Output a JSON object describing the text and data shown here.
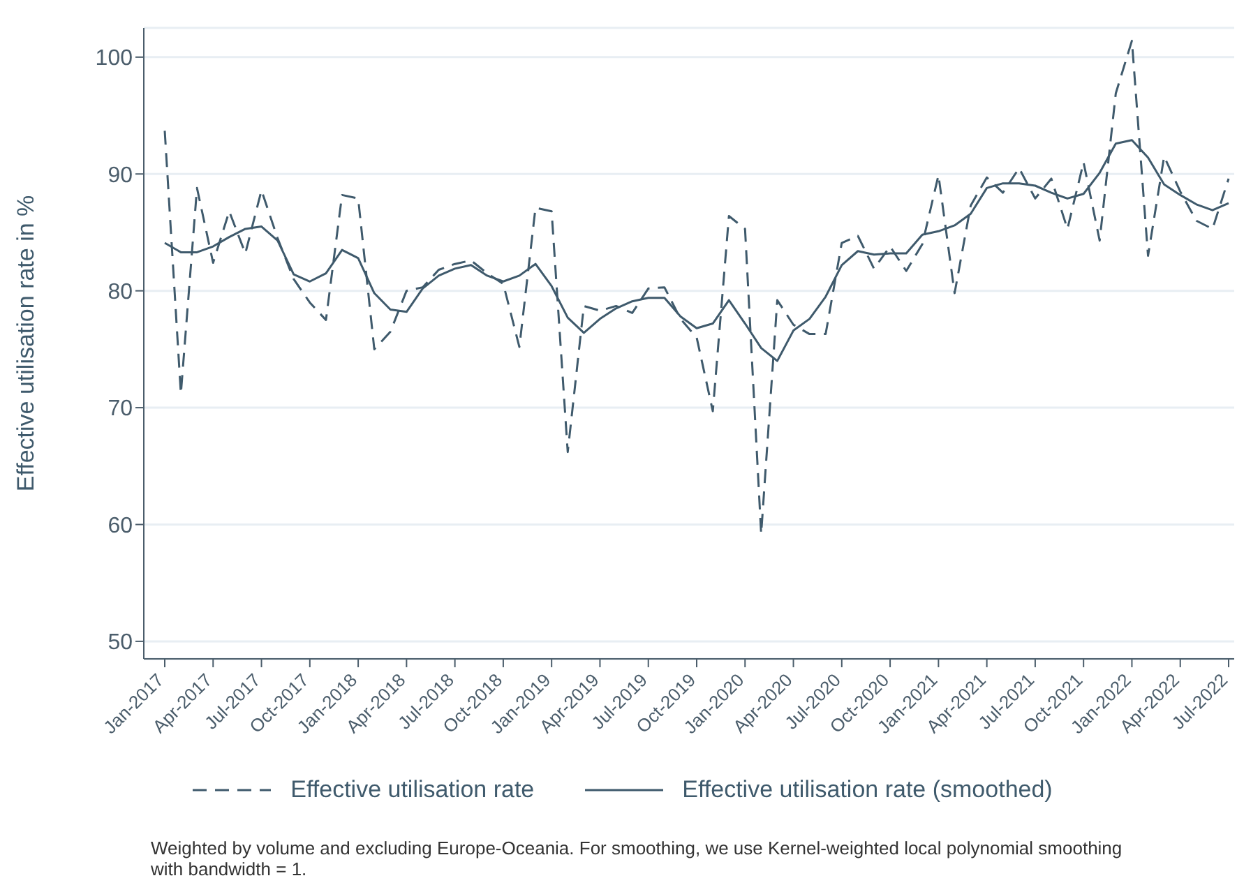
{
  "chart_data": {
    "type": "line",
    "ylabel": "Effective utilisation rate in %",
    "categories": [
      "Jan-2017",
      null,
      null,
      "Apr-2017",
      null,
      null,
      "Jul-2017",
      null,
      null,
      "Oct-2017",
      null,
      null,
      "Jan-2018",
      null,
      null,
      "Apr-2018",
      null,
      null,
      "Jul-2018",
      null,
      null,
      "Oct-2018",
      null,
      null,
      "Jan-2019",
      null,
      null,
      "Apr-2019",
      null,
      null,
      "Jul-2019",
      null,
      null,
      "Oct-2019",
      null,
      null,
      "Jan-2020",
      null,
      null,
      "Apr-2020",
      null,
      null,
      "Jul-2020",
      null,
      null,
      "Oct-2020",
      null,
      null,
      "Jan-2021",
      null,
      null,
      "Apr-2021",
      null,
      null,
      "Jul-2021",
      null,
      null,
      "Oct-2021",
      null,
      null,
      "Jan-2022",
      null,
      null,
      "Apr-2022",
      null,
      null,
      "Jul-2022"
    ],
    "series": [
      {
        "name": "Effective utilisation rate",
        "color": "#3f5a6c",
        "line_style": "dashed",
        "values": [
          93.7,
          71.2,
          88.8,
          82.4,
          86.8,
          83.2,
          88.6,
          84.5,
          81,
          79,
          77.5,
          88.2,
          87.9,
          75,
          76.5,
          80,
          80.3,
          81.8,
          82.3,
          82.6,
          81.5,
          80.6,
          75.2,
          87.1,
          86.8,
          66.2,
          78.7,
          78.3,
          78.7,
          78.1,
          80.2,
          80.3,
          77.6,
          76,
          69.7,
          86.4,
          85.3,
          59.2,
          79.2,
          77.1,
          76.3,
          76.3,
          84.1,
          84.7,
          81.9,
          83.8,
          81.7,
          84,
          89.9,
          79.8,
          87.3,
          89.7,
          88.4,
          90.5,
          87.9,
          89.6,
          85.3,
          91,
          84.3,
          96.9,
          101.4,
          83,
          91.5,
          88.5,
          86,
          85.3,
          89.6
        ]
      },
      {
        "name": "Effective utilisation rate (smoothed)",
        "color": "#3f5a6c",
        "line_style": "solid",
        "values": [
          84.1,
          83.3,
          83.3,
          83.8,
          84.6,
          85.3,
          85.5,
          84.3,
          81.4,
          80.8,
          81.5,
          83.5,
          82.8,
          79.8,
          78.4,
          78.2,
          80.2,
          81.3,
          81.9,
          82.2,
          81.3,
          80.8,
          81.3,
          82.3,
          80.4,
          77.7,
          76.4,
          77.6,
          78.5,
          79.1,
          79.4,
          79.4,
          77.8,
          76.8,
          77.2,
          79.2,
          77.2,
          75.1,
          74,
          76.6,
          77.6,
          79.5,
          82.2,
          83.4,
          83.1,
          83.2,
          83.2,
          84.8,
          85.1,
          85.6,
          86.6,
          88.8,
          89.2,
          89.2,
          89,
          88.4,
          87.9,
          88.3,
          90.1,
          92.6,
          92.9,
          91.4,
          89.1,
          88.2,
          87.4,
          86.9,
          87.5
        ]
      }
    ],
    "ylim": [
      48.5,
      102.5
    ],
    "yticks": [
      50,
      60,
      70,
      80,
      90,
      100
    ],
    "grid": "y",
    "legend": "bottom",
    "marker": "none",
    "annotations": [
      "Weighted by volume and excluding Europe-Oceania. For smoothing, we use Kernel-weighted local polynomial smoothing with bandwidth = 1."
    ]
  }
}
